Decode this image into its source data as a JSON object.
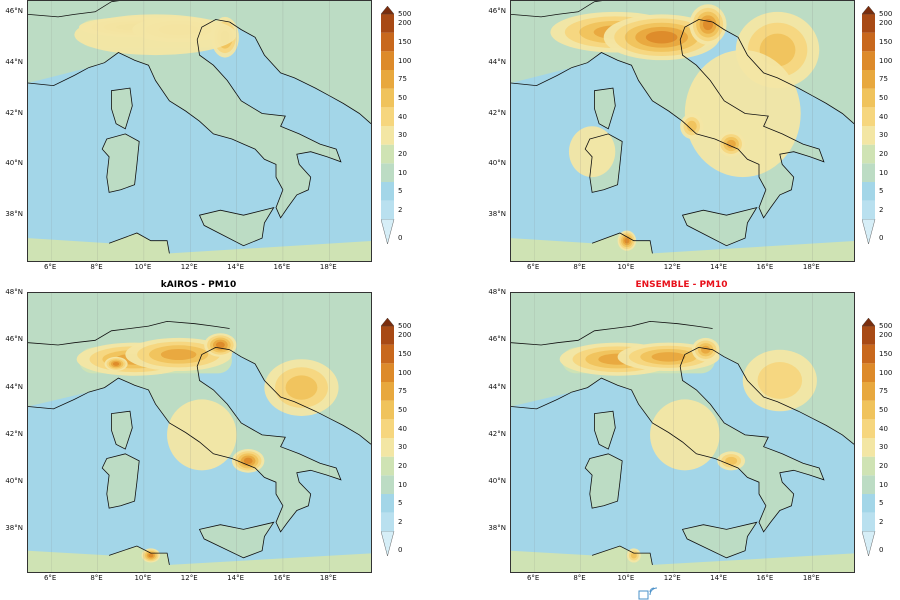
{
  "panels": [
    {
      "title": "",
      "title_color": "#000000",
      "variant": "a"
    },
    {
      "title": "",
      "title_color": "#000000",
      "variant": "b"
    },
    {
      "title": "kAIROS - PM10",
      "title_color": "#000000",
      "variant": "c"
    },
    {
      "title": "ENSEMBLE - PM10",
      "title_color": "#e8101a",
      "variant": "d"
    }
  ],
  "map": {
    "lat_ticks": [
      "48°N",
      "46°N",
      "44°N",
      "42°N",
      "40°N",
      "38°N"
    ],
    "lon_ticks": [
      "6°E",
      "8°E",
      "10°E",
      "12°E",
      "14°E",
      "16°E",
      "18°E"
    ],
    "sea_color": "#9fd3e3",
    "land_color": "#c5dfb9"
  },
  "colorbar": {
    "levels": [
      "0",
      "2",
      "5",
      "10",
      "20",
      "30",
      "40",
      "50",
      "75",
      "100",
      "150",
      "200",
      "500"
    ],
    "colors": [
      "#d6eef7",
      "#b9e0ef",
      "#a3d6e8",
      "#bcdcc4",
      "#cfe3b4",
      "#f3e6a4",
      "#f6d67e",
      "#f0c35c",
      "#e8a83e",
      "#dd8a2a",
      "#c8681d",
      "#a84a15",
      "#7a2d0d"
    ]
  },
  "logo": {
    "name": "wifi-logo-icon"
  }
}
